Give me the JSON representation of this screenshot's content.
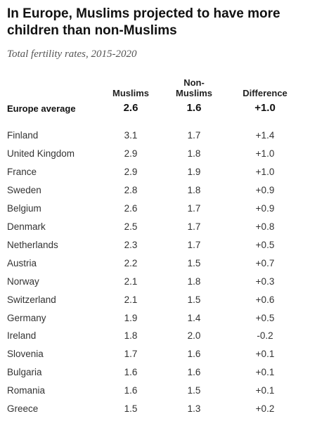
{
  "chart_data": {
    "type": "table",
    "title": "In Europe, Muslims projected to have more children than non-Muslims",
    "subtitle": "Total fertility rates, 2015-2020",
    "columns": [
      "Muslims",
      "Non-\nMuslims",
      "Difference"
    ],
    "average": {
      "label": "Europe average",
      "muslims": "2.6",
      "non_muslims": "1.6",
      "difference": "+1.0"
    },
    "rows": [
      {
        "country": "Finland",
        "muslims": "3.1",
        "non_muslims": "1.7",
        "difference": "+1.4"
      },
      {
        "country": "United Kingdom",
        "muslims": "2.9",
        "non_muslims": "1.8",
        "difference": "+1.0"
      },
      {
        "country": "France",
        "muslims": "2.9",
        "non_muslims": "1.9",
        "difference": "+1.0"
      },
      {
        "country": "Sweden",
        "muslims": "2.8",
        "non_muslims": "1.8",
        "difference": "+0.9"
      },
      {
        "country": "Belgium",
        "muslims": "2.6",
        "non_muslims": "1.7",
        "difference": "+0.9"
      },
      {
        "country": "Denmark",
        "muslims": "2.5",
        "non_muslims": "1.7",
        "difference": "+0.8"
      },
      {
        "country": "Netherlands",
        "muslims": "2.3",
        "non_muslims": "1.7",
        "difference": "+0.5"
      },
      {
        "country": "Austria",
        "muslims": "2.2",
        "non_muslims": "1.5",
        "difference": "+0.7"
      },
      {
        "country": "Norway",
        "muslims": "2.1",
        "non_muslims": "1.8",
        "difference": "+0.3"
      },
      {
        "country": "Switzerland",
        "muslims": "2.1",
        "non_muslims": "1.5",
        "difference": "+0.6"
      },
      {
        "country": "Germany",
        "muslims": "1.9",
        "non_muslims": "1.4",
        "difference": "+0.5"
      },
      {
        "country": "Ireland",
        "muslims": "1.8",
        "non_muslims": "2.0",
        "difference": "-0.2"
      },
      {
        "country": "Slovenia",
        "muslims": "1.7",
        "non_muslims": "1.6",
        "difference": "+0.1"
      },
      {
        "country": "Bulgaria",
        "muslims": "1.6",
        "non_muslims": "1.6",
        "difference": "+0.1"
      },
      {
        "country": "Romania",
        "muslims": "1.6",
        "non_muslims": "1.5",
        "difference": "+0.1"
      },
      {
        "country": "Greece",
        "muslims": "1.5",
        "non_muslims": "1.3",
        "difference": "+0.2"
      }
    ]
  }
}
